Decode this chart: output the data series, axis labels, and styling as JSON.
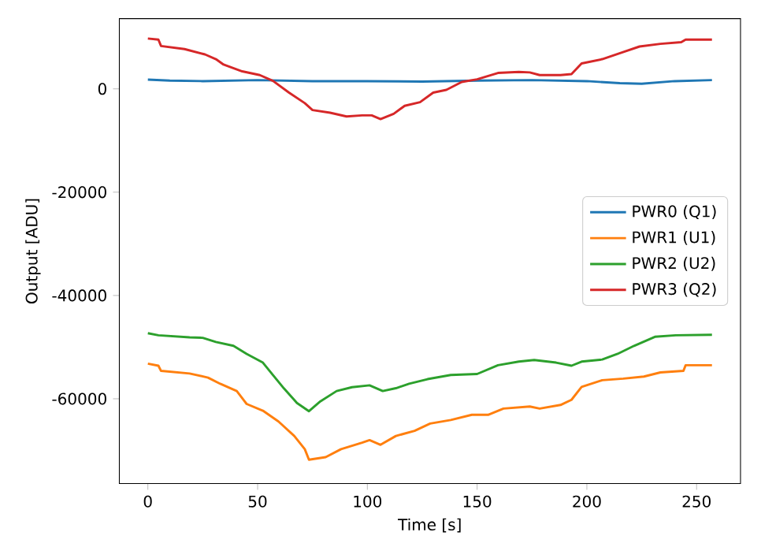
{
  "chart_data": {
    "type": "line",
    "xlabel": "Time [s]",
    "ylabel": "Output [ADU]",
    "xlim": [
      -13,
      270
    ],
    "ylim": [
      -76400,
      13600
    ],
    "xticks": [
      0,
      50,
      100,
      150,
      200,
      250
    ],
    "yticks": [
      -60000,
      -40000,
      -20000,
      0
    ],
    "grid": false,
    "legend": "right",
    "marker": "none",
    "line_style": "solid",
    "series": [
      {
        "name": "PWR0 (Q1)",
        "color": "#1f77b4",
        "x": [
          0,
          10,
          25,
          50,
          75,
          100,
          125,
          150,
          175,
          200,
          215,
          225,
          240,
          257
        ],
        "values": [
          1800,
          1600,
          1500,
          1700,
          1500,
          1500,
          1400,
          1600,
          1700,
          1500,
          1100,
          1000,
          1500,
          1700
        ]
      },
      {
        "name": "PWR1 (U1)",
        "color": "#ff7f0e",
        "x": [
          0,
          4.8,
          6,
          19,
          27.4,
          33,
          40.5,
          45,
          52.4,
          59.5,
          66.7,
          71.5,
          73.4,
          81,
          88,
          97.6,
          101,
          106,
          113,
          121.5,
          128.6,
          138,
          147.6,
          155,
          162,
          174,
          178.5,
          188,
          193,
          197.6,
          207,
          216.6,
          226,
          233.5,
          244,
          245,
          257
        ],
        "values": [
          -53200,
          -53600,
          -54600,
          -55100,
          -55900,
          -57100,
          -58500,
          -61000,
          -62300,
          -64400,
          -67200,
          -69750,
          -71800,
          -71300,
          -69750,
          -68500,
          -68000,
          -68900,
          -67200,
          -66200,
          -64800,
          -64100,
          -63100,
          -63100,
          -61900,
          -61500,
          -61900,
          -61200,
          -60200,
          -57700,
          -56400,
          -56100,
          -55700,
          -54900,
          -54600,
          -53500,
          -53500
        ]
      },
      {
        "name": "PWR2 (U2)",
        "color": "#2ca02c",
        "x": [
          0,
          4.8,
          19,
          25,
          31,
          39,
          45,
          52.4,
          57,
          62,
          67.9,
          73.4,
          78.6,
          86,
          93,
          101,
          107,
          113,
          119,
          127.4,
          138,
          150,
          159.5,
          169,
          176,
          186,
          193,
          197.6,
          207,
          214,
          221.5,
          231,
          240.5,
          257
        ],
        "values": [
          -47300,
          -47700,
          -48100,
          -48200,
          -49000,
          -49750,
          -51300,
          -53000,
          -55400,
          -58000,
          -60800,
          -62400,
          -60500,
          -58500,
          -57750,
          -57400,
          -58500,
          -57950,
          -57100,
          -56200,
          -55400,
          -55200,
          -53500,
          -52800,
          -52500,
          -53000,
          -53600,
          -52800,
          -52400,
          -51300,
          -49750,
          -48000,
          -47700,
          -47600
        ]
      },
      {
        "name": "PWR3 (Q2)",
        "color": "#d62728",
        "x": [
          0,
          4.8,
          6,
          16.7,
          26,
          31,
          34.5,
          43,
          51,
          57,
          64.3,
          71.5,
          75,
          83,
          90.5,
          97.6,
          102,
          106,
          112,
          117,
          124,
          130,
          136,
          143,
          150,
          159.5,
          169,
          174,
          178.5,
          188,
          193,
          197.6,
          207,
          217,
          224,
          233.5,
          243,
          245,
          257
        ],
        "values": [
          9750,
          9540,
          8300,
          7700,
          6670,
          5750,
          4700,
          3390,
          2670,
          1540,
          -720,
          -2770,
          -4100,
          -4620,
          -5340,
          -5130,
          -5130,
          -5850,
          -4820,
          -3280,
          -2570,
          -720,
          -200,
          1330,
          1850,
          3080,
          3280,
          3180,
          2670,
          2670,
          2870,
          4920,
          5750,
          7180,
          8200,
          8720,
          9030,
          9540,
          9540
        ]
      }
    ]
  }
}
